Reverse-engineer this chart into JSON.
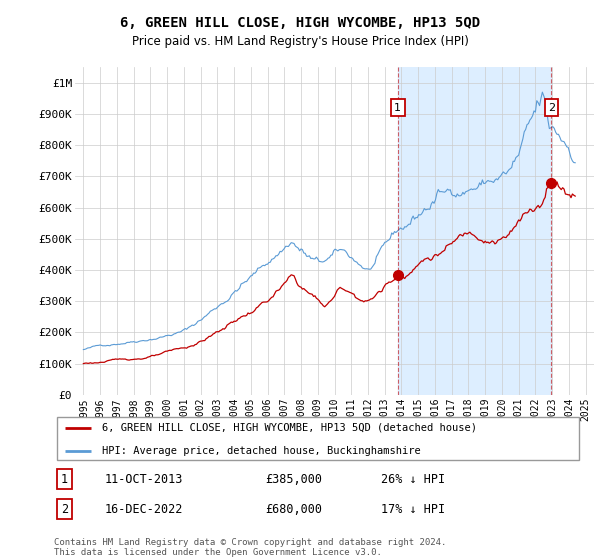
{
  "title": "6, GREEN HILL CLOSE, HIGH WYCOMBE, HP13 5QD",
  "subtitle": "Price paid vs. HM Land Registry's House Price Index (HPI)",
  "legend_line1": "6, GREEN HILL CLOSE, HIGH WYCOMBE, HP13 5QD (detached house)",
  "legend_line2": "HPI: Average price, detached house, Buckinghamshire",
  "footer": "Contains HM Land Registry data © Crown copyright and database right 2024.\nThis data is licensed under the Open Government Licence v3.0.",
  "annotation1_date": "11-OCT-2013",
  "annotation1_price": "£385,000",
  "annotation1_pct": "26% ↓ HPI",
  "annotation2_date": "16-DEC-2022",
  "annotation2_price": "£680,000",
  "annotation2_pct": "17% ↓ HPI",
  "hpi_color": "#5b9bd5",
  "price_color": "#c00000",
  "shade_color": "#ddeeff",
  "background_color": "#ffffff",
  "grid_color": "#cccccc",
  "ylim": [
    0,
    1050000
  ],
  "yticks": [
    0,
    100000,
    200000,
    300000,
    400000,
    500000,
    600000,
    700000,
    800000,
    900000,
    1000000
  ],
  "ytick_labels": [
    "£0",
    "£100K",
    "£200K",
    "£300K",
    "£400K",
    "£500K",
    "£600K",
    "£700K",
    "£800K",
    "£900K",
    "£1M"
  ],
  "sale1_x": 2013.78,
  "sale1_y": 385000,
  "sale2_x": 2022.96,
  "sale2_y": 680000,
  "xtick_years": [
    1995,
    1996,
    1997,
    1998,
    1999,
    2000,
    2001,
    2002,
    2003,
    2004,
    2005,
    2006,
    2007,
    2008,
    2009,
    2010,
    2011,
    2012,
    2013,
    2014,
    2015,
    2016,
    2017,
    2018,
    2019,
    2020,
    2021,
    2022,
    2023,
    2024,
    2025
  ],
  "xlim": [
    1994.5,
    2025.5
  ]
}
